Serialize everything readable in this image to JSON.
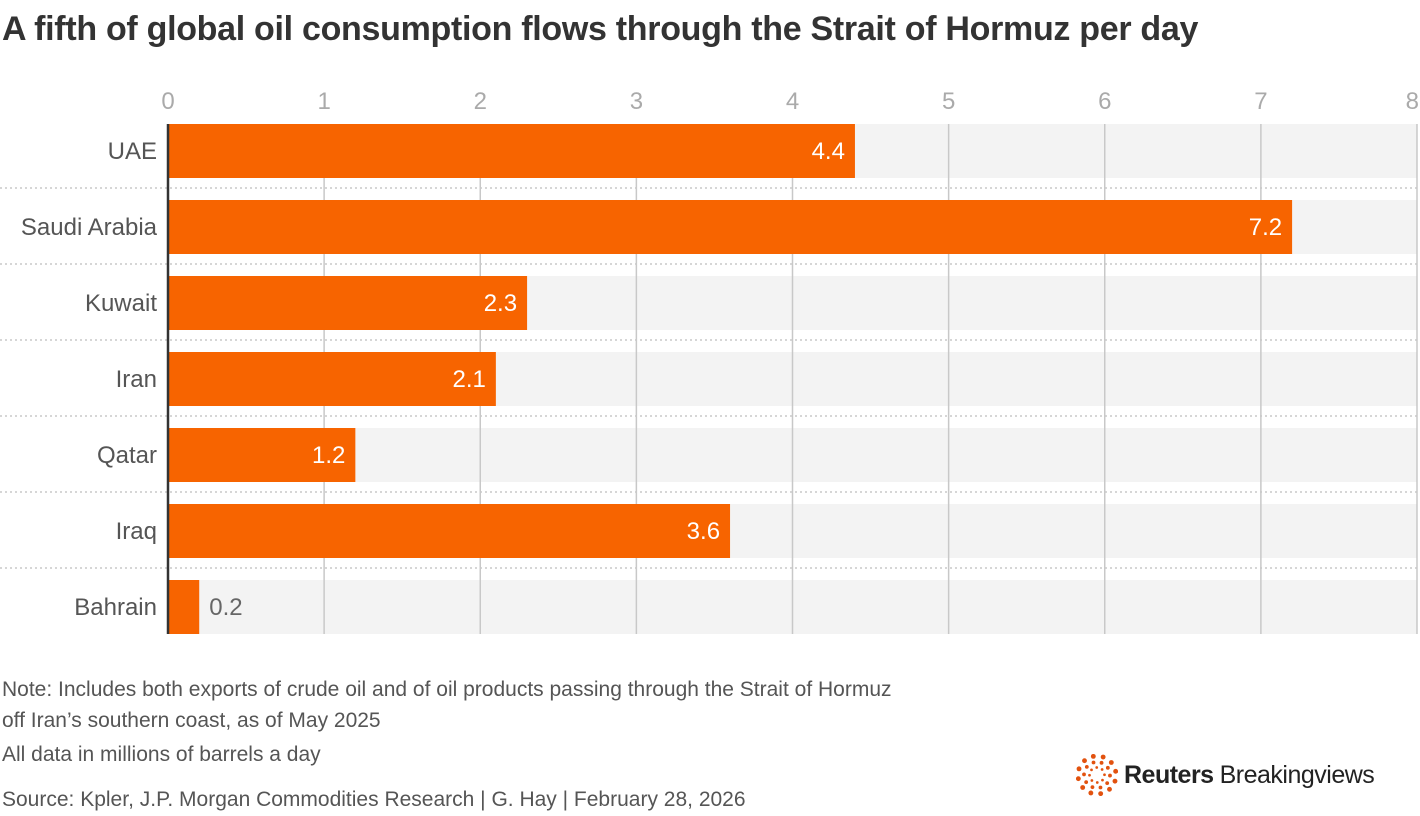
{
  "title": "A fifth of global oil consumption flows through the Strait of Hormuz per day",
  "chart_data": {
    "type": "bar",
    "orientation": "horizontal",
    "categories": [
      "UAE",
      "Saudi Arabia",
      "Kuwait",
      "Iran",
      "Qatar",
      "Iraq",
      "Bahrain"
    ],
    "values": [
      4.4,
      7.2,
      2.3,
      2.1,
      1.2,
      3.6,
      0.2
    ],
    "data_labels": [
      "4.4",
      "7.2",
      "2.3",
      "2.1",
      "1.2",
      "3.6",
      "0.2"
    ],
    "xlim": [
      0,
      8
    ],
    "x_ticks": [
      "0",
      "1",
      "2",
      "3",
      "4",
      "5",
      "6",
      "7",
      "8"
    ],
    "x_axis_position": "top",
    "grid": true,
    "bar_color": "#f76400",
    "track_color": "#f3f3f3"
  },
  "notes": [
    "Note: Includes both exports of crude oil and of oil products passing through the Strait of Hormuz",
    "off Iran’s southern coast, as of May 2025",
    "All data in millions of barrels a day"
  ],
  "source": "Source: Kpler, J.P. Morgan Commodities Research | G. Hay | February 28, 2026",
  "logo": {
    "word1": "Reuters",
    "word2": "Breakingviews",
    "color": "#e2520f"
  }
}
